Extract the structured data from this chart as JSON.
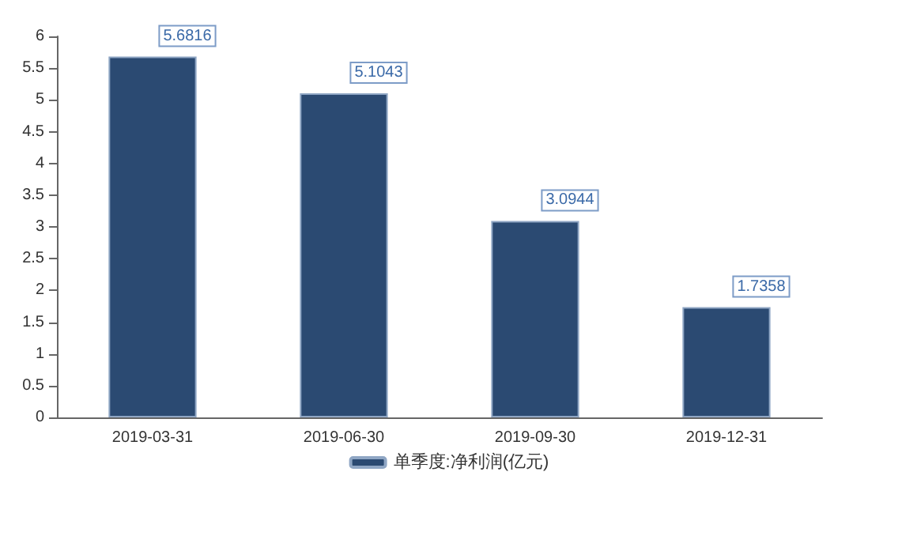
{
  "chart_data": {
    "type": "bar",
    "categories": [
      "2019-03-31",
      "2019-06-30",
      "2019-09-30",
      "2019-12-31"
    ],
    "series": [
      {
        "name": "单季度:净利润(亿元)",
        "color": "#2b4a72",
        "values": [
          5.6816,
          5.1043,
          3.0944,
          1.7358
        ]
      }
    ],
    "ylim": [
      0,
      6
    ],
    "yticks": [
      0,
      0.5,
      1,
      1.5,
      2,
      2.5,
      3,
      3.5,
      4,
      4.5,
      5,
      5.5,
      6
    ],
    "data_labels": true,
    "legend": "bottom",
    "grid": false
  }
}
